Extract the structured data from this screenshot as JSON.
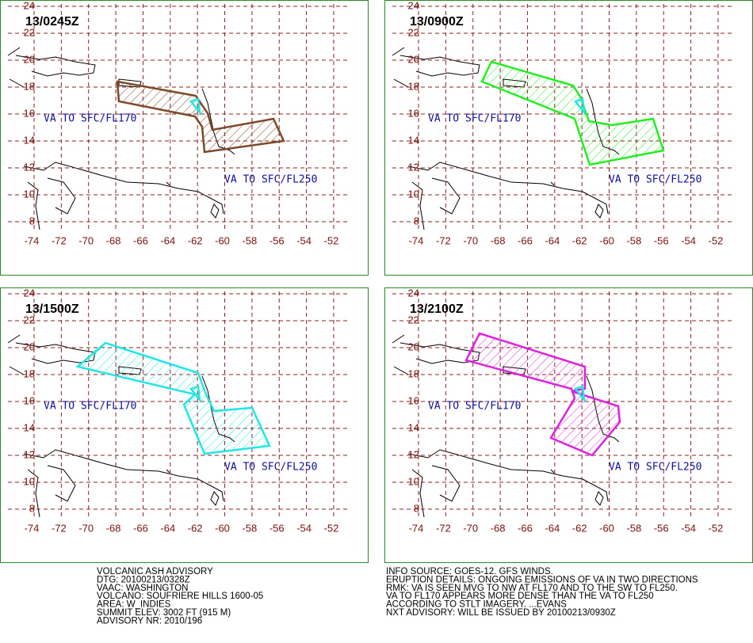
{
  "panels": [
    {
      "time": "13/0245Z",
      "labels": [
        "VA TO SFC/FL170",
        "VA TO SFC/FL250"
      ],
      "color": "#7a4a2a"
    },
    {
      "time": "13/0900Z",
      "labels": [
        "VA TO SFC/FL170",
        "VA TO SFC/FL250"
      ],
      "color": "#22ee22"
    },
    {
      "time": "13/1500Z",
      "labels": [
        "VA TO SFC/FL170",
        "VA TO SFC/FL250"
      ],
      "color": "#22e6e6"
    },
    {
      "time": "13/2100Z",
      "labels": [
        "VA TO SFC/FL170",
        "VA TO SFC/FL250"
      ],
      "color": "#dd22dd"
    }
  ],
  "lat_labels": [
    24,
    22,
    20,
    18,
    16,
    14,
    12,
    10,
    8
  ],
  "lon_labels": [
    -74,
    -72,
    -70,
    -68,
    -66,
    -64,
    -62,
    -60,
    -58,
    -56,
    -54,
    -52
  ],
  "advisory_left": [
    "VOLCANIC ASH ADVISORY",
    "DTG: 20100213/0328Z",
    "VAAC: WASHINGTON",
    "VOLCANO: SOUFRIERE HILLS 1600-05",
    "AREA: W_INDIES",
    "SUMMIT ELEV: 3002 FT (915 M)",
    "ADVISORY NR: 2010/196"
  ],
  "advisory_right": [
    "INFO SOURCE: GOES-12. GFS WINDS.",
    "ERUPTION DETAILS: ONGOING EMISSIONS OF VA IN TWO DIRECTIONS",
    "RMK: VA IS SEEN MVG TO NW AT FL170 AND TO THE SW TO FL250.",
    "VA TO FL170 APPEARS MORE DENSE THAN THE VA TO FL250",
    "ACCORDING TO STLT IMAGERY. ...EVANS",
    "NXT ADVISORY: WILL BE ISSUED BY 20100213/0930Z"
  ]
}
